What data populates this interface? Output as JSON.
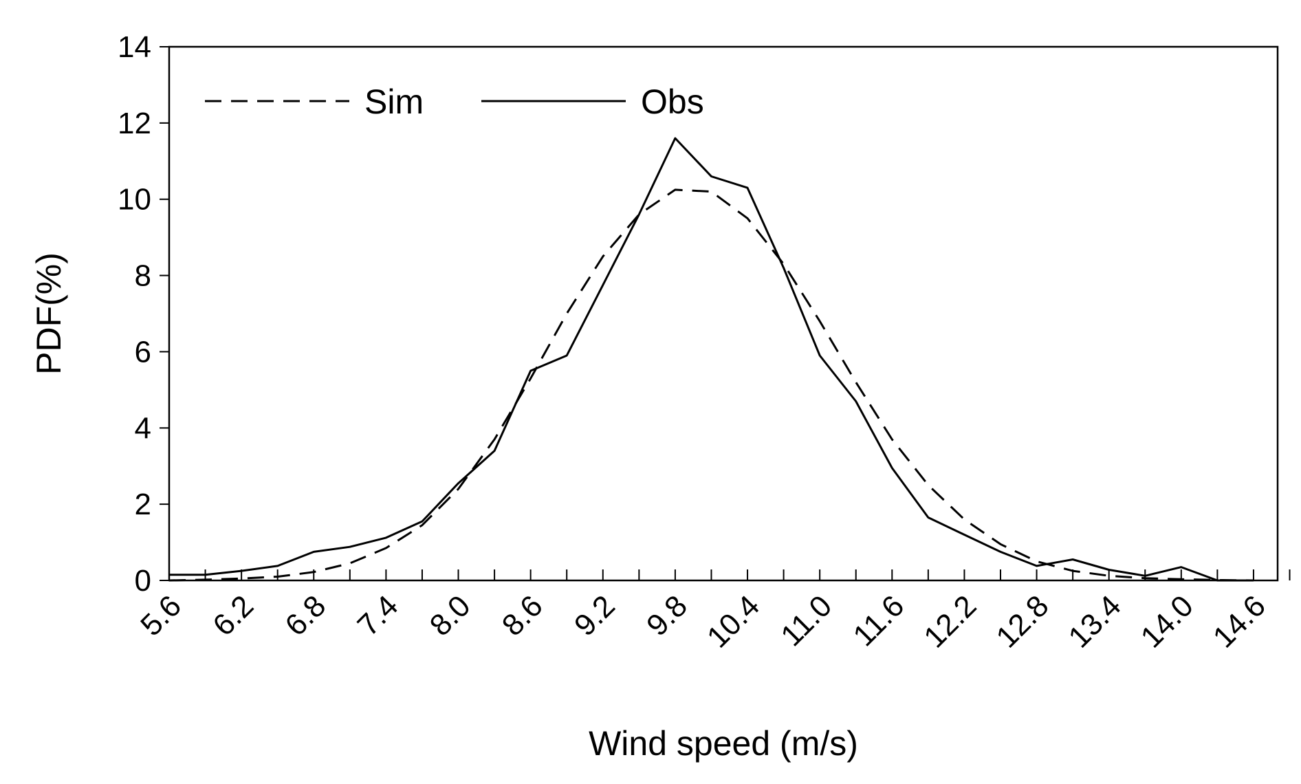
{
  "chart_data": {
    "type": "line",
    "title": "",
    "xlabel": "Wind speed (m/s)",
    "ylabel": "PDF(%)",
    "xlim": [
      5.6,
      14.8
    ],
    "ylim": [
      0,
      14
    ],
    "x_tick_labels": [
      "5.6",
      "6.2",
      "6.8",
      "7.4",
      "8.0",
      "8.6",
      "9.2",
      "9.8",
      "10.4",
      "11.0",
      "11.6",
      "12.2",
      "12.8",
      "13.4",
      "14.0",
      "14.6"
    ],
    "y_tick_labels": [
      "0",
      "2",
      "4",
      "6",
      "8",
      "10",
      "12",
      "14"
    ],
    "legend_position": "top-left",
    "series": [
      {
        "name": "Sim",
        "style": "dashed",
        "color": "#000000",
        "x": [
          5.6,
          5.9,
          6.2,
          6.5,
          6.8,
          7.1,
          7.4,
          7.7,
          8.0,
          8.3,
          8.6,
          8.9,
          9.2,
          9.5,
          9.8,
          10.1,
          10.4,
          10.7,
          11.0,
          11.3,
          11.6,
          11.9,
          12.2,
          12.5,
          12.8,
          13.1,
          13.4,
          13.7,
          14.0,
          14.3,
          14.6
        ],
        "values": [
          0.0,
          0.02,
          0.05,
          0.1,
          0.22,
          0.45,
          0.85,
          1.45,
          2.4,
          3.7,
          5.3,
          7.0,
          8.5,
          9.6,
          10.25,
          10.2,
          9.5,
          8.3,
          6.8,
          5.2,
          3.7,
          2.5,
          1.6,
          0.95,
          0.5,
          0.25,
          0.12,
          0.06,
          0.03,
          0.01,
          0.0
        ]
      },
      {
        "name": "Obs",
        "style": "solid",
        "color": "#000000",
        "x": [
          5.6,
          5.9,
          6.2,
          6.5,
          6.8,
          7.1,
          7.4,
          7.7,
          8.0,
          8.3,
          8.6,
          8.9,
          9.2,
          9.5,
          9.8,
          10.1,
          10.4,
          10.7,
          11.0,
          11.3,
          11.6,
          11.9,
          12.2,
          12.5,
          12.8,
          13.1,
          13.4,
          13.7,
          14.0,
          14.3,
          14.6
        ],
        "values": [
          0.15,
          0.15,
          0.25,
          0.38,
          0.75,
          0.88,
          1.12,
          1.55,
          2.55,
          3.4,
          5.5,
          5.9,
          7.75,
          9.6,
          11.6,
          10.6,
          10.3,
          8.2,
          5.9,
          4.7,
          2.95,
          1.65,
          1.2,
          0.75,
          0.38,
          0.55,
          0.28,
          0.12,
          0.35,
          0.0,
          0.0
        ]
      }
    ]
  }
}
